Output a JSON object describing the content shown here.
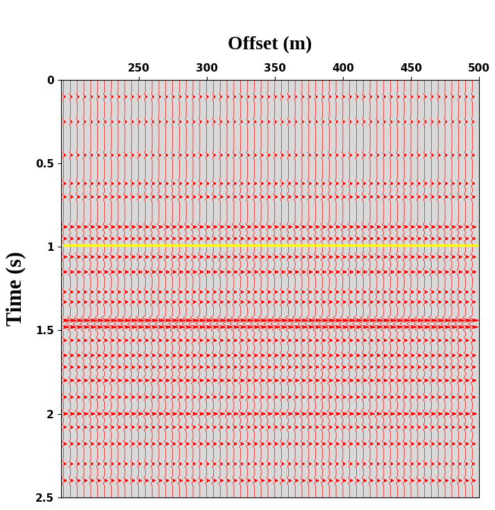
{
  "chart_data": {
    "type": "wiggle",
    "xlabel": "Offset (m)",
    "ylabel": "Time (s)",
    "x": [
      195,
      200,
      205,
      210,
      215,
      220,
      225,
      230,
      235,
      240,
      245,
      250,
      255,
      260,
      265,
      270,
      275,
      280,
      285,
      290,
      295,
      300,
      305,
      310,
      315,
      320,
      325,
      330,
      335,
      340,
      345,
      350,
      355,
      360,
      365,
      370,
      375,
      380,
      385,
      390,
      395,
      400,
      405,
      410,
      415,
      420,
      425,
      430,
      435,
      440,
      445,
      450,
      455,
      460,
      465,
      470,
      475,
      480,
      485,
      490,
      495
    ],
    "reflector_times": [
      0.1,
      0.25,
      0.45,
      0.62,
      0.7,
      0.88,
      0.95,
      1.06,
      1.15,
      1.27,
      1.33,
      1.44,
      1.48,
      1.56,
      1.65,
      1.72,
      1.8,
      1.9,
      2.0,
      2.08,
      2.18,
      2.3,
      2.4
    ],
    "reflector_amplitudes": [
      0.3,
      0.3,
      0.35,
      0.4,
      0.45,
      0.6,
      0.5,
      0.55,
      0.6,
      0.45,
      0.5,
      1.0,
      0.9,
      0.5,
      0.55,
      0.5,
      0.6,
      0.5,
      0.7,
      0.45,
      0.5,
      0.4,
      0.5
    ],
    "color": "#ff0000",
    "series": [
      {
        "type": "line",
        "color": "#ffff00",
        "x": [
          195,
          500
        ],
        "values": [
          0.99,
          0.99
        ]
      }
    ],
    "xlim": [
      193,
      500
    ],
    "xticks": [
      250,
      300,
      350,
      400,
      450,
      500
    ],
    "ylim": [
      2.5,
      0
    ],
    "yticks": [
      0,
      0.5,
      1,
      1.5,
      2,
      2.5
    ]
  }
}
